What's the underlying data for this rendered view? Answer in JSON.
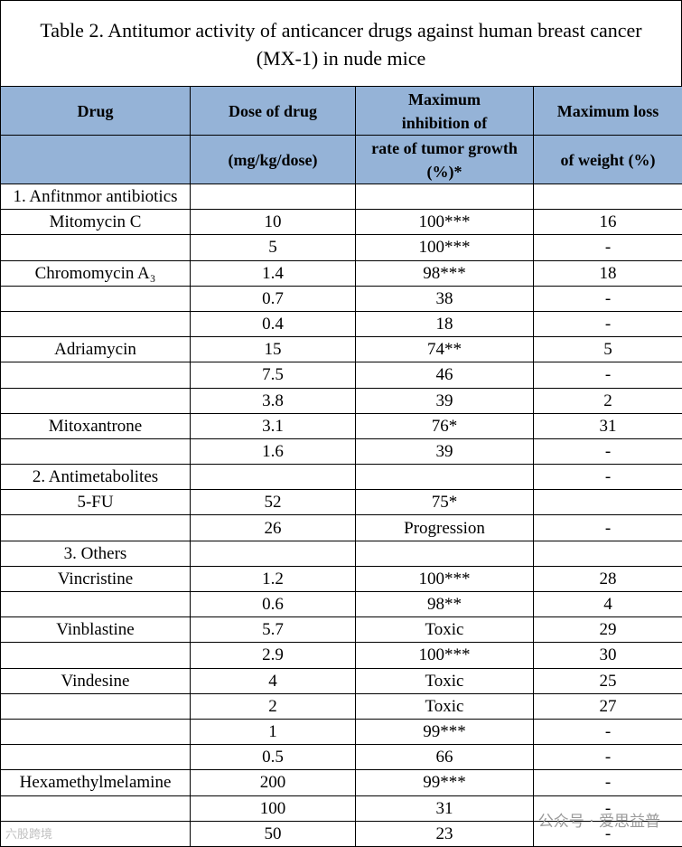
{
  "title": {
    "line1": "Table 2. Antitumor activity of anticancer drugs against human breast cancer",
    "line2": "(MX-1) in nude mice"
  },
  "header": {
    "drug": "Drug",
    "dose": "Dose of drug",
    "dose_unit": "(mg/kg/dose)",
    "inhibition": "Maximum inhibition of",
    "inhibition_unit": "rate of tumor growth (%)*",
    "weight_loss": "Maximum loss",
    "weight_loss_unit": "of weight (%)"
  },
  "table": {
    "rows": [
      {
        "drug": "1. Anfitnmor antibiotics"
      },
      {
        "drug": "Mitomycin C",
        "dose": "10",
        "inhibition": "100***",
        "weight_loss": "16"
      },
      {
        "dose": "5",
        "inhibition": "100***",
        "weight_loss": "-"
      },
      {
        "drug": "Chromomycin A₃",
        "dose": "1.4",
        "inhibition": "98***",
        "weight_loss": "18"
      },
      {
        "dose": "0.7",
        "inhibition": "38",
        "weight_loss": "-"
      },
      {
        "dose": "0.4",
        "inhibition": "18",
        "weight_loss": "-"
      },
      {
        "drug": "Adriamycin",
        "dose": "15",
        "inhibition": "74**",
        "weight_loss": "5"
      },
      {
        "dose": "7.5",
        "inhibition": "46",
        "weight_loss": "-"
      },
      {
        "dose": "3.8",
        "inhibition": "39",
        "weight_loss": "2"
      },
      {
        "drug": "Mitoxantrone",
        "dose": "3.1",
        "inhibition": "76*",
        "weight_loss": "31"
      },
      {
        "dose": "1.6",
        "inhibition": "39",
        "weight_loss": "-"
      },
      {
        "drug": "2. Antimetabolites",
        "weight_loss": "-"
      },
      {
        "drug": "5-FU",
        "dose": "52",
        "inhibition": "75*"
      },
      {
        "dose": "26",
        "inhibition": "Progression",
        "weight_loss": "-"
      },
      {
        "drug": "3. Others"
      },
      {
        "drug": "Vincristine",
        "dose": "1.2",
        "inhibition": "100***",
        "weight_loss": "28"
      },
      {
        "dose": "0.6",
        "inhibition": "98**",
        "weight_loss": "4"
      },
      {
        "drug": "Vinblastine",
        "dose": "5.7",
        "inhibition": "Toxic",
        "weight_loss": "29"
      },
      {
        "dose": "2.9",
        "inhibition": "100***",
        "weight_loss": "30"
      },
      {
        "drug": "Vindesine",
        "dose": "4",
        "inhibition": "Toxic",
        "weight_loss": "25"
      },
      {
        "dose": "2",
        "inhibition": "Toxic",
        "weight_loss": "27"
      },
      {
        "dose": "1",
        "inhibition": "99***",
        "weight_loss": "-"
      },
      {
        "dose": "0.5",
        "inhibition": "66",
        "weight_loss": "-"
      },
      {
        "drug": "Hexamethylmelamine",
        "dose": "200",
        "inhibition": "99***",
        "weight_loss": "-"
      },
      {
        "dose": "100",
        "inhibition": "31",
        "weight_loss": "-"
      },
      {
        "dose": "50",
        "inhibition": "23",
        "weight_loss": "-"
      }
    ]
  },
  "watermark": {
    "right": "公众号 · 爱思益普",
    "left": "六股跨境"
  }
}
